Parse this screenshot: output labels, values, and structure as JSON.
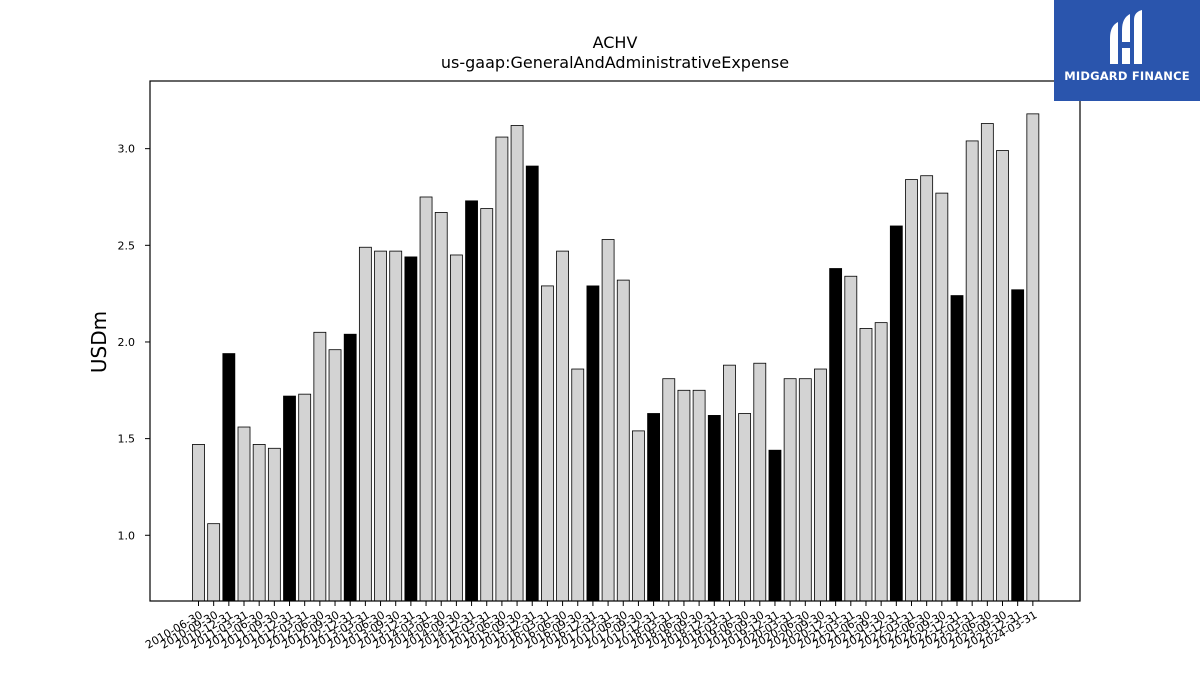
{
  "chart_data": {
    "type": "bar",
    "title": "ACHV",
    "subtitle": "us-gaap:GeneralAndAdministrativeExpense",
    "ylabel": "USDm",
    "xlabel": "",
    "ylim": [
      0.66,
      3.35
    ],
    "yticks": [
      "1.0",
      "1.5",
      "2.0",
      "2.5",
      "3.0"
    ],
    "grid": false,
    "colors": {
      "annual": "#000000",
      "quarterly": "#d3d3d3",
      "edge": "#000000"
    },
    "categories": [
      "2010-06-30",
      "2010-09-30",
      "2010-12-31",
      "2011-03-31",
      "2011-06-30",
      "2011-09-30",
      "2011-12-31",
      "2012-03-31",
      "2012-06-30",
      "2012-09-30",
      "2012-12-31",
      "2013-03-31",
      "2013-06-30",
      "2013-09-30",
      "2013-12-31",
      "2014-03-31",
      "2014-06-30",
      "2014-09-30",
      "2014-12-31",
      "2015-03-31",
      "2015-06-30",
      "2015-09-30",
      "2015-12-31",
      "2016-03-31",
      "2016-06-30",
      "2016-09-30",
      "2016-12-31",
      "2017-03-31",
      "2017-06-30",
      "2017-09-30",
      "2017-12-31",
      "2018-03-31",
      "2018-06-30",
      "2018-09-30",
      "2018-12-31",
      "2019-03-31",
      "2019-06-30",
      "2019-09-30",
      "2019-12-31",
      "2020-03-31",
      "2020-06-30",
      "2020-09-30",
      "2020-12-31",
      "2021-03-31",
      "2021-06-30",
      "2021-09-30",
      "2021-12-31",
      "2022-03-31",
      "2022-06-30",
      "2022-09-30",
      "2022-12-31",
      "2023-03-31",
      "2023-06-30",
      "2023-09-30",
      "2023-12-31",
      "2024-03-31"
    ],
    "values": [
      1.47,
      1.06,
      1.94,
      1.56,
      1.47,
      1.45,
      1.72,
      1.73,
      2.05,
      1.96,
      2.04,
      2.49,
      2.47,
      2.47,
      2.44,
      2.75,
      2.67,
      2.45,
      2.73,
      2.69,
      3.06,
      3.12,
      2.91,
      2.29,
      2.47,
      1.86,
      2.29,
      2.53,
      2.32,
      1.54,
      1.63,
      1.81,
      1.75,
      1.75,
      1.62,
      1.88,
      1.63,
      1.89,
      1.44,
      1.81,
      1.81,
      1.86,
      2.38,
      2.34,
      2.07,
      2.1,
      2.6,
      2.84,
      2.86,
      2.77,
      2.24,
      3.04,
      3.13,
      2.99,
      2.27,
      3.18
    ],
    "highlight_annual": [
      false,
      false,
      true,
      false,
      false,
      false,
      true,
      false,
      false,
      false,
      true,
      false,
      false,
      false,
      true,
      false,
      false,
      false,
      true,
      false,
      false,
      false,
      true,
      false,
      false,
      false,
      true,
      false,
      false,
      false,
      true,
      false,
      false,
      false,
      true,
      false,
      false,
      false,
      true,
      false,
      false,
      false,
      true,
      false,
      false,
      false,
      true,
      false,
      false,
      false,
      true,
      false,
      false,
      false,
      true,
      false
    ]
  },
  "logo": {
    "text": "MIDGARD FINANCE",
    "icon": "midgard-logo-icon"
  }
}
